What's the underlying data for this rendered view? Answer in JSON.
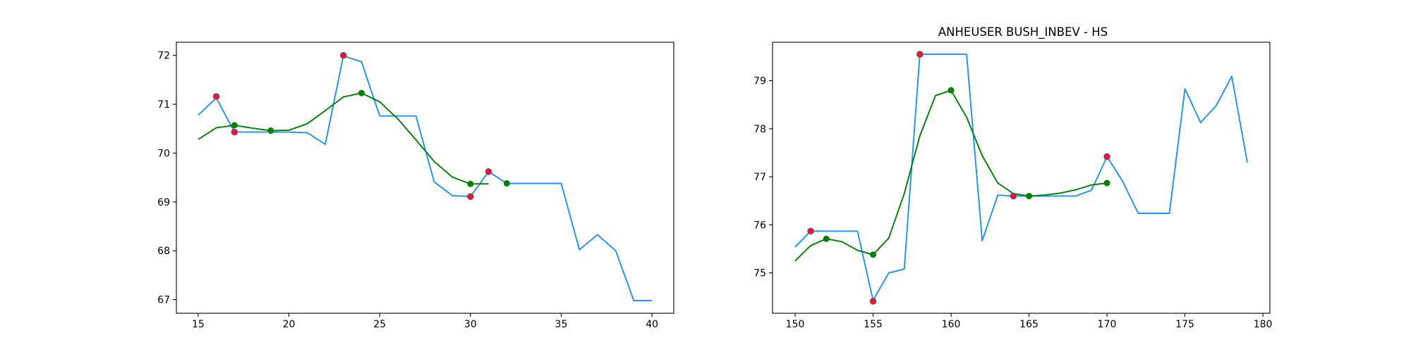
{
  "colors": {
    "price": "#1e90ff",
    "smoothed": "#008000",
    "extreme_marker": "#e8182a",
    "smoothed_marker": "#008000"
  },
  "chart_data": [
    {
      "type": "line",
      "title": "",
      "xlabel": "",
      "ylabel": "",
      "xlim": [
        13.8,
        41.2
      ],
      "ylim": [
        66.72,
        72.27
      ],
      "xticks": [
        15,
        20,
        25,
        30,
        35,
        40
      ],
      "yticks": [
        67,
        68,
        69,
        70,
        71,
        72
      ],
      "grid": false,
      "series": [
        {
          "kind": "price",
          "x": [
            15,
            16,
            17,
            18,
            19,
            20,
            21,
            22,
            23,
            24,
            25,
            26,
            27,
            28,
            29,
            30,
            31,
            32,
            33,
            34,
            35,
            36,
            37,
            38,
            39,
            40
          ],
          "y": [
            70.78,
            71.13,
            70.43,
            70.43,
            70.43,
            70.43,
            70.42,
            70.18,
            71.99,
            71.87,
            70.76,
            70.76,
            70.76,
            69.41,
            69.13,
            69.11,
            69.62,
            69.38,
            69.38,
            69.38,
            69.38,
            68.02,
            68.33,
            68.0,
            66.98,
            66.98
          ]
        },
        {
          "kind": "smoothed",
          "x": [
            15,
            16,
            17,
            18,
            19,
            20,
            21,
            22,
            23,
            24,
            25,
            26,
            27,
            28,
            29,
            30,
            31
          ],
          "y": [
            70.28,
            70.52,
            70.57,
            70.51,
            70.46,
            70.47,
            70.6,
            70.87,
            71.15,
            71.23,
            71.05,
            70.7,
            70.27,
            69.83,
            69.51,
            69.37,
            69.37
          ]
        }
      ],
      "extreme_points": {
        "x": [
          16,
          17,
          23,
          30,
          31
        ],
        "y": [
          71.16,
          70.43,
          72.0,
          69.11,
          69.62
        ]
      },
      "smoothed_points": {
        "x": [
          17,
          19,
          24,
          30,
          32
        ],
        "y": [
          70.57,
          70.46,
          71.23,
          69.37,
          69.38
        ]
      }
    },
    {
      "type": "line",
      "title": "ANHEUSER BUSH_INBEV - HS",
      "xlabel": "",
      "ylabel": "",
      "xlim": [
        148.55,
        180.45
      ],
      "ylim": [
        74.16,
        79.8
      ],
      "xticks": [
        150,
        155,
        160,
        165,
        170,
        175,
        180
      ],
      "yticks": [
        75,
        76,
        77,
        78,
        79
      ],
      "grid": false,
      "series": [
        {
          "kind": "price",
          "x": [
            150,
            151,
            152,
            153,
            154,
            155,
            156,
            157,
            158,
            159,
            160,
            161,
            162,
            163,
            164,
            165,
            166,
            167,
            168,
            169,
            170,
            171,
            172,
            173,
            174,
            175,
            176,
            177,
            178,
            179
          ],
          "y": [
            75.54,
            75.87,
            75.87,
            75.87,
            75.87,
            74.43,
            75.0,
            75.08,
            79.55,
            79.55,
            79.55,
            79.55,
            75.67,
            76.62,
            76.6,
            76.6,
            76.6,
            76.6,
            76.6,
            76.72,
            77.42,
            76.91,
            76.24,
            76.24,
            76.24,
            78.83,
            78.13,
            78.48,
            79.09,
            77.3
          ]
        },
        {
          "kind": "smoothed",
          "x": [
            150,
            151,
            152,
            153,
            154,
            155,
            156,
            157,
            158,
            159,
            160,
            161,
            162,
            163,
            164,
            165,
            166,
            167,
            168,
            169,
            170
          ],
          "y": [
            75.25,
            75.57,
            75.71,
            75.65,
            75.47,
            75.38,
            75.72,
            76.65,
            77.85,
            78.69,
            78.8,
            78.24,
            77.44,
            76.87,
            76.65,
            76.6,
            76.62,
            76.66,
            76.73,
            76.83,
            76.87
          ]
        }
      ],
      "extreme_points": {
        "x": [
          151,
          155,
          158,
          164,
          170
        ],
        "y": [
          75.87,
          74.41,
          79.55,
          76.6,
          77.42
        ]
      },
      "smoothed_points": {
        "x": [
          152,
          155,
          160,
          165,
          170
        ],
        "y": [
          75.71,
          75.38,
          78.8,
          76.6,
          76.87
        ]
      }
    }
  ]
}
